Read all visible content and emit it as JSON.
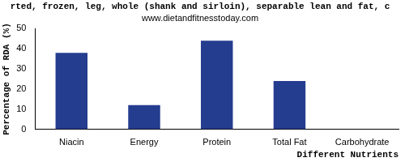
{
  "chart_data": {
    "type": "bar",
    "title": "rted, frozen, leg, whole (shank and sirloin), separable lean and fat, c",
    "subtitle": "www.dietandfitnesstoday.com",
    "x_label": "Different Nutrients",
    "y_label": "Percentage of RDA (%)",
    "categories": [
      "Niacin",
      "Energy",
      "Protein",
      "Total Fat",
      "Carbohydrate"
    ],
    "values": [
      38,
      12,
      44,
      24,
      0
    ],
    "color": "#253d8f",
    "ylim": [
      0,
      50
    ],
    "yticks": [
      0,
      10,
      20,
      30,
      40,
      50
    ],
    "grid": false
  }
}
